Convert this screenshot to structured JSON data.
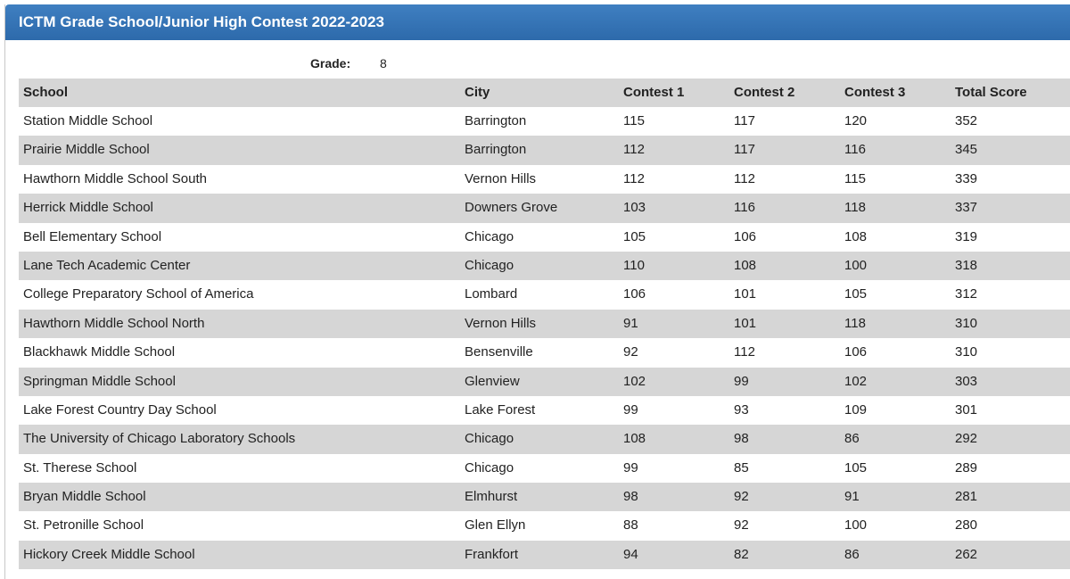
{
  "header": {
    "title": "ICTM Grade School/Junior High Contest 2022-2023"
  },
  "grade": {
    "label": "Grade:",
    "value": 8
  },
  "table": {
    "columns": [
      "School",
      "City",
      "Contest 1",
      "Contest 2",
      "Contest 3",
      "Total Score"
    ],
    "rows": [
      [
        "Station Middle School",
        "Barrington",
        115,
        117,
        120,
        352
      ],
      [
        "Prairie Middle School",
        "Barrington",
        112,
        117,
        116,
        345
      ],
      [
        "Hawthorn Middle School South",
        "Vernon Hills",
        112,
        112,
        115,
        339
      ],
      [
        "Herrick Middle School",
        "Downers Grove",
        103,
        116,
        118,
        337
      ],
      [
        "Bell Elementary School",
        "Chicago",
        105,
        106,
        108,
        319
      ],
      [
        "Lane Tech Academic Center",
        "Chicago",
        110,
        108,
        100,
        318
      ],
      [
        "College Preparatory School of America",
        "Lombard",
        106,
        101,
        105,
        312
      ],
      [
        "Hawthorn Middle School North",
        "Vernon Hills",
        91,
        101,
        118,
        310
      ],
      [
        "Blackhawk Middle School",
        "Bensenville",
        92,
        112,
        106,
        310
      ],
      [
        "Springman Middle School",
        "Glenview",
        102,
        99,
        102,
        303
      ],
      [
        "Lake Forest Country Day School",
        "Lake Forest",
        99,
        93,
        109,
        301
      ],
      [
        "The University of Chicago Laboratory Schools",
        "Chicago",
        108,
        98,
        86,
        292
      ],
      [
        "St. Therese School",
        "Chicago",
        99,
        85,
        105,
        289
      ],
      [
        "Bryan Middle School",
        "Elmhurst",
        98,
        92,
        91,
        281
      ],
      [
        "St. Petronille School",
        "Glen Ellyn",
        88,
        92,
        100,
        280
      ],
      [
        "Hickory Creek Middle School",
        "Frankfort",
        94,
        82,
        86,
        262
      ]
    ]
  }
}
